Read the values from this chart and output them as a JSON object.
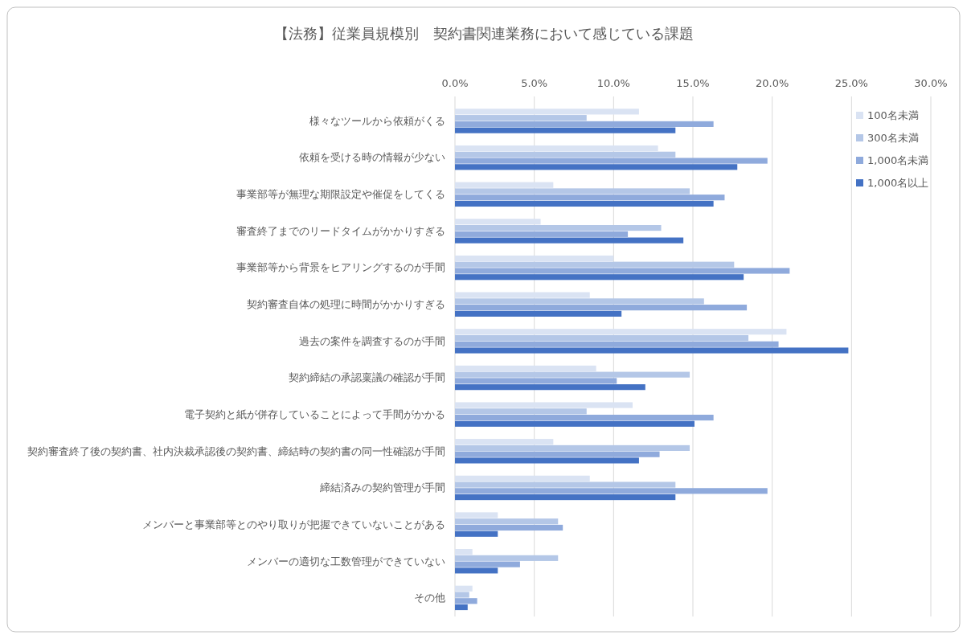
{
  "chart_data": {
    "type": "bar",
    "orientation": "horizontal",
    "title": "【法務】従業員規模別　契約書関連業務において感じている課題",
    "categories": [
      "様々なツールから依頼がくる",
      "依頼を受ける時の情報が少ない",
      "事業部等が無理な期限設定や催促をしてくる",
      "審査終了までのリードタイムがかかりすぎる",
      "事業部等から背景をヒアリングするのが手間",
      "契約審査自体の処理に時間がかかりすぎる",
      "過去の案件を調査するのが手間",
      "契約締結の承認稟議の確認が手間",
      "電子契約と紙が併存していることによって手間がかかる",
      "契約審査終了後の契約書、社内決裁承認後の契約書、締結時の契約書の同一性確認が手間",
      "締結済みの契約管理が手間",
      "メンバーと事業部等とのやり取りが把握できていないことがある",
      "メンバーの適切な工数管理ができていない",
      "その他"
    ],
    "series": [
      {
        "name": "100名未満",
        "color": "#dae3f3",
        "values": [
          11.6,
          12.8,
          6.2,
          5.4,
          10.0,
          8.5,
          20.9,
          8.9,
          11.2,
          6.2,
          8.5,
          2.7,
          1.1,
          1.1
        ]
      },
      {
        "name": "300名未満",
        "color": "#b4c7e7",
        "values": [
          8.3,
          13.9,
          14.8,
          13.0,
          17.6,
          15.7,
          18.5,
          14.8,
          8.3,
          14.8,
          13.9,
          6.5,
          6.5,
          0.9
        ]
      },
      {
        "name": "1,000名未満",
        "color": "#8faadc",
        "values": [
          16.3,
          19.7,
          17.0,
          10.9,
          21.1,
          18.4,
          20.4,
          10.2,
          16.3,
          12.9,
          19.7,
          6.8,
          4.1,
          1.4
        ]
      },
      {
        "name": "1,000名以上",
        "color": "#4472c4",
        "values": [
          13.9,
          17.8,
          16.3,
          14.4,
          18.2,
          10.5,
          24.8,
          12.0,
          15.1,
          11.6,
          13.9,
          2.7,
          2.7,
          0.8
        ]
      }
    ],
    "xlim": [
      0,
      30
    ],
    "xticks": [
      {
        "value": 0,
        "label": "0.0%"
      },
      {
        "value": 5,
        "label": "5.0%"
      },
      {
        "value": 10,
        "label": "10.0%"
      },
      {
        "value": 15,
        "label": "15.0%"
      },
      {
        "value": 20,
        "label": "20.0%"
      },
      {
        "value": 25,
        "label": "25.0%"
      },
      {
        "value": 30,
        "label": "30.0%"
      }
    ],
    "grid": "x",
    "legend": "top right"
  }
}
